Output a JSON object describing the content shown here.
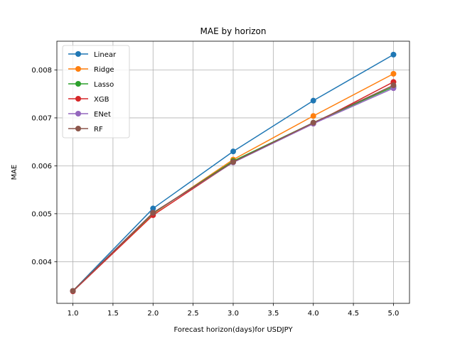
{
  "chart_data": {
    "type": "line",
    "title": "MAE by horizon",
    "xlabel": "Forecast horizon(days)for USDJPY",
    "ylabel": "MAE",
    "x": [
      1.0,
      2.0,
      3.0,
      4.0,
      5.0
    ],
    "xlim": [
      0.8,
      5.2
    ],
    "ylim": [
      0.00313,
      0.0086
    ],
    "xticks": [
      1.0,
      1.5,
      2.0,
      2.5,
      3.0,
      3.5,
      4.0,
      4.5,
      5.0
    ],
    "xtick_labels": [
      "1.0",
      "1.5",
      "2.0",
      "2.5",
      "3.0",
      "3.5",
      "4.0",
      "4.5",
      "5.0"
    ],
    "yticks": [
      0.004,
      0.005,
      0.006,
      0.007,
      0.008
    ],
    "ytick_labels": [
      "0.004",
      "0.005",
      "0.006",
      "0.007",
      "0.008"
    ],
    "grid": true,
    "legend_position": "upper-left",
    "series": [
      {
        "name": "Linear",
        "color": "#1f77b4",
        "values": [
          0.00339,
          0.00511,
          0.0063,
          0.00736,
          0.00832
        ]
      },
      {
        "name": "Ridge",
        "color": "#ff7f0e",
        "values": [
          0.00339,
          0.005,
          0.00613,
          0.00704,
          0.00792
        ]
      },
      {
        "name": "Lasso",
        "color": "#2ca02c",
        "values": [
          0.00339,
          0.00501,
          0.0061,
          0.0069,
          0.00765
        ]
      },
      {
        "name": "XGB",
        "color": "#d62728",
        "values": [
          0.00338,
          0.00497,
          0.00608,
          0.00688,
          0.00775
        ]
      },
      {
        "name": "ENet",
        "color": "#9467bd",
        "values": [
          0.00339,
          0.00502,
          0.00607,
          0.00688,
          0.00762
        ]
      },
      {
        "name": "RF",
        "color": "#8c564b",
        "values": [
          0.00339,
          0.00502,
          0.00608,
          0.0069,
          0.00768
        ]
      }
    ]
  }
}
